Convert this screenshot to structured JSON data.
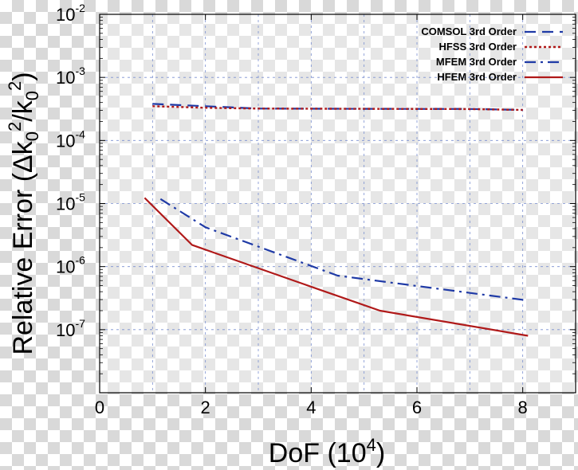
{
  "chart_data": {
    "type": "line",
    "title": "",
    "xlabel": "DoF (10",
    "xlabel_sup": "4",
    "xlabel_suffix": ")",
    "ylabel": "Relative Error (Δk",
    "ylabel_parts": [
      "Relative Error (Δk",
      "0",
      "2",
      "/k",
      "0",
      "2",
      ")"
    ],
    "xlim": [
      0,
      9
    ],
    "ylim_log10": [
      -8,
      -2
    ],
    "yscale": "log",
    "x_ticks": [
      {
        "value": 0,
        "label": "0"
      },
      {
        "value": 2,
        "label": "2"
      },
      {
        "value": 4,
        "label": "4"
      },
      {
        "value": 6,
        "label": "6"
      },
      {
        "value": 8,
        "label": "8"
      }
    ],
    "y_ticks": [
      {
        "exp": -2,
        "base": "10",
        "sup": "-2"
      },
      {
        "exp": -3,
        "base": "10",
        "sup": "-3"
      },
      {
        "exp": -4,
        "base": "10",
        "sup": "-4"
      },
      {
        "exp": -5,
        "base": "10",
        "sup": "-5"
      },
      {
        "exp": -6,
        "base": "10",
        "sup": "-6"
      },
      {
        "exp": -7,
        "base": "10",
        "sup": "-7"
      }
    ],
    "grid": true,
    "legend_position": "top-right",
    "series": [
      {
        "name": "COMSOL 3rd Order",
        "color": "#1f3aa6",
        "style": "dashed",
        "x": [
          1.0,
          2.0,
          3.0,
          5.0,
          7.0,
          8.0
        ],
        "y": [
          0.00038,
          0.00035,
          0.00032,
          0.000318,
          0.000316,
          0.000305
        ]
      },
      {
        "name": "HFSS 3rd Order",
        "color": "#b01919",
        "style": "dotted",
        "x": [
          1.0,
          2.0,
          3.0,
          5.0,
          7.0,
          8.0
        ],
        "y": [
          0.00035,
          0.00033,
          0.00032,
          0.000318,
          0.000315,
          0.000305
        ]
      },
      {
        "name": "MFEM 3rd Order",
        "color": "#1f3aa6",
        "style": "dashdot",
        "x": [
          1.15,
          2.0,
          4.5,
          8.1
        ],
        "y": [
          1.18e-05,
          4.2e-06,
          7.2e-07,
          2.9e-07
        ]
      },
      {
        "name": "HFEM 3rd Order",
        "color": "#b01919",
        "style": "solid",
        "x": [
          0.85,
          1.75,
          4.0,
          5.3,
          8.1
        ],
        "y": [
          1.23e-05,
          2.2e-06,
          4.8e-07,
          2e-07,
          8e-08
        ]
      }
    ]
  }
}
